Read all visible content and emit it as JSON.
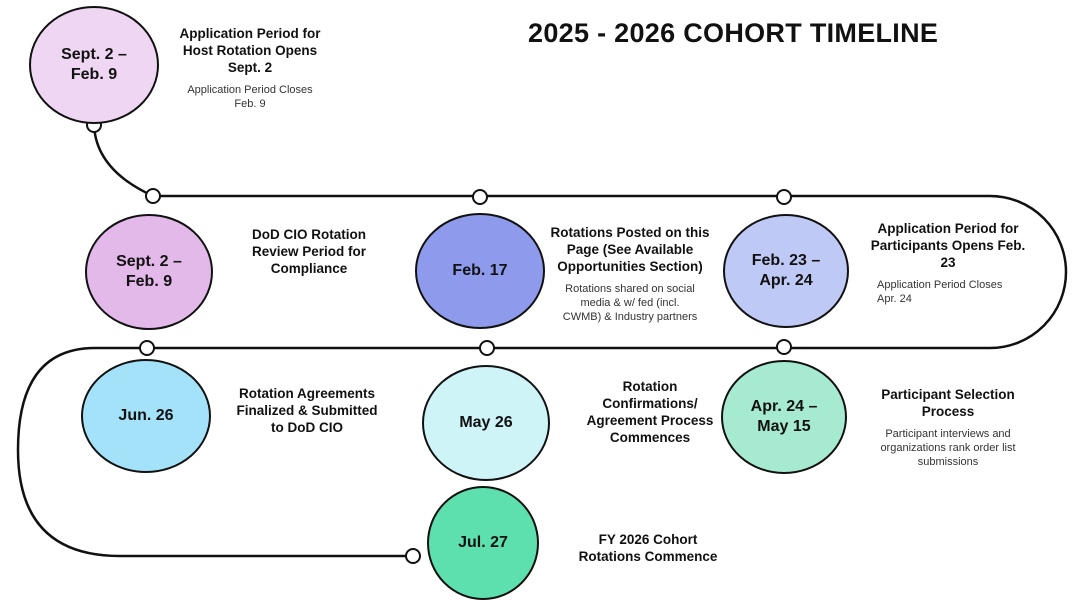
{
  "title": "2025 - 2026 COHORT TIMELINE",
  "milestones": [
    {
      "date": "Sept. 2 –\nFeb. 9",
      "heading": "Application Period for\nHost Rotation Opens\nSept. 2",
      "note": "Application Period Closes\nFeb. 9",
      "color": "#efd6f2"
    },
    {
      "date": "Sept. 2 –\nFeb. 9",
      "heading": "DoD CIO Rotation\nReview Period for\nCompliance",
      "note": "",
      "color": "#e3b9e9"
    },
    {
      "date": "Feb. 17",
      "heading": "Rotations Posted on this\nPage (See Available\nOpportunities Section)",
      "note": "Rotations shared on social\nmedia & w/ fed (incl.\nCWMB) & Industry partners",
      "color": "#8e9bec"
    },
    {
      "date": "Feb. 23 –\nApr. 24",
      "heading": "Application Period for\nParticipants Opens Feb.\n23",
      "note": "Application Period Closes\nApr. 24",
      "color": "#bfc9f5"
    },
    {
      "date": "Apr. 24 –\nMay 15",
      "heading": "Participant Selection\nProcess",
      "note": "Participant interviews and\norganizations rank order list\nsubmissions",
      "color": "#a6ebd1"
    },
    {
      "date": "May 26",
      "heading": "Rotation\nConfirmations/\nAgreement Process\nCommences",
      "note": "",
      "color": "#cff4f8"
    },
    {
      "date": "Jun. 26",
      "heading": "Rotation Agreements\nFinalized & Submitted\nto DoD CIO",
      "note": "",
      "color": "#a4e2fa"
    },
    {
      "date": "Jul. 27",
      "heading": "FY 2026 Cohort\nRotations Commence",
      "note": "",
      "color": "#5de0ae"
    }
  ]
}
